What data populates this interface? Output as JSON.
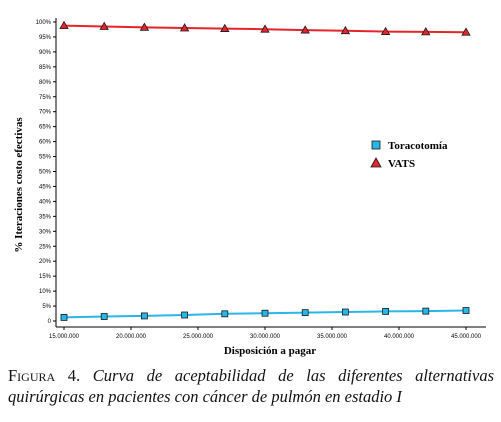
{
  "chart_data": {
    "type": "line",
    "title": "",
    "xlabel": "Disposición a pagar",
    "ylabel": "% Iteraciones costo efectivas",
    "x": [
      15000000,
      18000000,
      21000000,
      24000000,
      27000000,
      30000000,
      33000000,
      36000000,
      39000000,
      42000000,
      45000000
    ],
    "xlim": [
      15000000,
      45000000
    ],
    "ylim": [
      0,
      100
    ],
    "x_ticks": [
      "15.000.000",
      "20.000.000",
      "25.000.000",
      "30.000.000",
      "35.000.000",
      "40.000.000",
      "45.000.000"
    ],
    "y_ticks": [
      "0",
      "5%",
      "10%",
      "15%",
      "20%",
      "25%",
      "30%",
      "35%",
      "40%",
      "45%",
      "50%",
      "55%",
      "60%",
      "65%",
      "70%",
      "75%",
      "80%",
      "85%",
      "90%",
      "95%",
      "100%"
    ],
    "series": [
      {
        "name": "Toracotomía",
        "color": "#29b6e8",
        "marker": "square",
        "values": [
          1.2,
          1.5,
          1.7,
          2.0,
          2.4,
          2.6,
          2.8,
          3.0,
          3.2,
          3.3,
          3.5
        ]
      },
      {
        "name": "VATS",
        "color": "#e8242b",
        "marker": "triangle",
        "values": [
          98.8,
          98.5,
          98.2,
          98.0,
          97.8,
          97.6,
          97.3,
          97.1,
          96.8,
          96.7,
          96.6
        ]
      }
    ],
    "legend": "right-middle",
    "grid": false
  },
  "caption": {
    "prefix": "Figura 4.",
    "text": "Curva de aceptabilidad de las diferentes alternativas quirúrgicas en pacientes con cáncer de pulmón en estadio I"
  }
}
